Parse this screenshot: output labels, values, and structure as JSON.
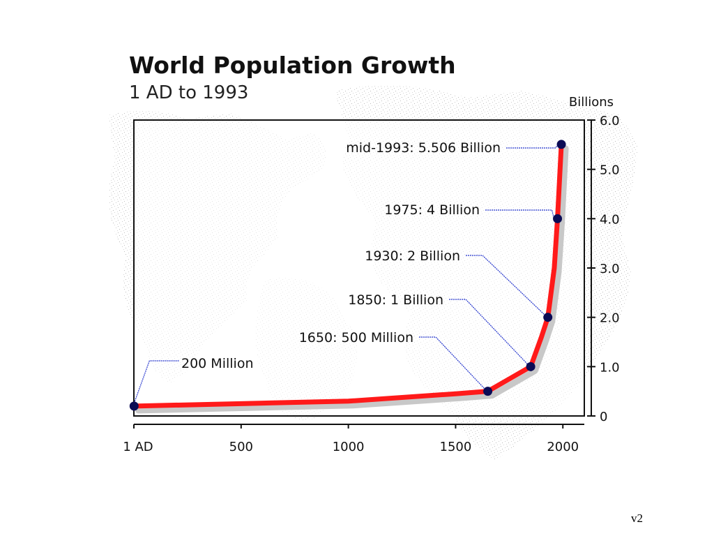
{
  "chart_data": {
    "type": "line",
    "title": "World Population Growth",
    "subtitle": "1 AD to 1993",
    "ylabel": "Billions",
    "xlabel": "",
    "xlim": [
      0,
      2100
    ],
    "ylim": [
      0,
      6.0
    ],
    "x_ticks": [
      {
        "value": 0,
        "label": "1 AD"
      },
      {
        "value": 500,
        "label": "500"
      },
      {
        "value": 1000,
        "label": "1000"
      },
      {
        "value": 1500,
        "label": "1500"
      },
      {
        "value": 2000,
        "label": "2000"
      }
    ],
    "y_ticks": [
      {
        "value": 0,
        "label": "0"
      },
      {
        "value": 1,
        "label": "1.0"
      },
      {
        "value": 2,
        "label": "2.0"
      },
      {
        "value": 3,
        "label": "3.0"
      },
      {
        "value": 4,
        "label": "4.0"
      },
      {
        "value": 5,
        "label": "5.0"
      },
      {
        "value": 6,
        "label": "6.0"
      }
    ],
    "grid": false,
    "y_axis_side": "right",
    "series": [
      {
        "color": "#ff1a1a",
        "points": [
          {
            "x": 1,
            "y": 0.2
          },
          {
            "x": 500,
            "y": 0.25
          },
          {
            "x": 1000,
            "y": 0.3
          },
          {
            "x": 1500,
            "y": 0.45
          },
          {
            "x": 1650,
            "y": 0.5
          },
          {
            "x": 1750,
            "y": 0.75
          },
          {
            "x": 1850,
            "y": 1.0
          },
          {
            "x": 1900,
            "y": 1.6
          },
          {
            "x": 1930,
            "y": 2.0
          },
          {
            "x": 1960,
            "y": 3.0
          },
          {
            "x": 1975,
            "y": 4.0
          },
          {
            "x": 1993,
            "y": 5.506
          }
        ]
      }
    ],
    "annotations": [
      {
        "x": 1,
        "y": 0.2,
        "label": "200 Million"
      },
      {
        "x": 1650,
        "y": 0.5,
        "label": "1650: 500 Million"
      },
      {
        "x": 1850,
        "y": 1.0,
        "label": "1850: 1 Billion"
      },
      {
        "x": 1930,
        "y": 2.0,
        "label": "1930: 2 Billion"
      },
      {
        "x": 1975,
        "y": 4.0,
        "label": "1975: 4 Billion"
      },
      {
        "x": 1993,
        "y": 5.506,
        "label": "mid-1993: 5.506 Billion"
      }
    ],
    "colors": {
      "line": "#ff1a1a",
      "marker": "#0b0b55",
      "leader": "#2233cc",
      "frame": "#111111",
      "shadow": "#c8c8c8",
      "map": "#bdbdbd"
    }
  },
  "footer": {
    "version": "v2"
  }
}
